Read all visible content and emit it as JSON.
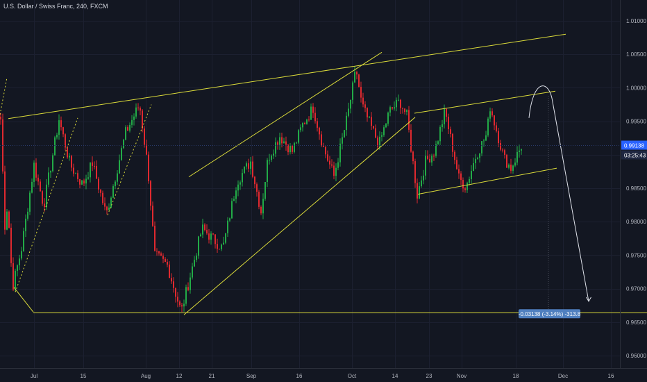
{
  "chart_data": {
    "type": "candlestick",
    "title": "U.S. Dollar / Swiss Franc, 240, FXCM",
    "price_axis": {
      "ticks": [
        "1.01000",
        "1.00500",
        "1.00000",
        "0.99500",
        "0.99000",
        "0.98500",
        "0.98000",
        "0.97500",
        "0.97000",
        "0.96500",
        "0.96000"
      ],
      "range": [
        0.9592,
        1.0118
      ]
    },
    "time_axis": {
      "labels": [
        "Jul",
        "15",
        "Aug",
        "12",
        "21",
        "Sep",
        "16",
        "Oct",
        "14",
        "23",
        "Nov",
        "18",
        "Dec",
        "16"
      ]
    },
    "current_price": "0.99138",
    "countdown": "03:25:43",
    "measurement_label": "-0.03138 (-3.14%) -313.8",
    "target_level": 0.9662,
    "colors": {
      "background": "#131722",
      "up": "#26a69a",
      "up_candle": "#22ab47",
      "down": "#e0292f",
      "trendline": "#dcdc3a",
      "axis_text": "#b2b5be",
      "price_badge": "#2962ff"
    },
    "swing_points": [
      {
        "t": 0,
        "p": 0.9953
      },
      {
        "t": 6,
        "p": 0.9795
      },
      {
        "t": 10,
        "p": 0.9828
      },
      {
        "t": 17,
        "p": 0.9702
      },
      {
        "t": 30,
        "p": 0.976
      },
      {
        "t": 48,
        "p": 0.9885
      },
      {
        "t": 62,
        "p": 0.9824
      },
      {
        "t": 84,
        "p": 0.9953
      },
      {
        "t": 100,
        "p": 0.9885
      },
      {
        "t": 118,
        "p": 0.9855
      },
      {
        "t": 132,
        "p": 0.9888
      },
      {
        "t": 152,
        "p": 0.981
      },
      {
        "t": 180,
        "p": 0.9933
      },
      {
        "t": 200,
        "p": 0.9975
      },
      {
        "t": 212,
        "p": 0.988
      },
      {
        "t": 222,
        "p": 0.975
      },
      {
        "t": 240,
        "p": 0.9735
      },
      {
        "t": 260,
        "p": 0.9665
      },
      {
        "t": 290,
        "p": 0.979
      },
      {
        "t": 320,
        "p": 0.976
      },
      {
        "t": 340,
        "p": 0.986
      },
      {
        "t": 360,
        "p": 0.989
      },
      {
        "t": 375,
        "p": 0.9815
      },
      {
        "t": 385,
        "p": 0.9895
      },
      {
        "t": 402,
        "p": 0.9928
      },
      {
        "t": 420,
        "p": 0.9905
      },
      {
        "t": 435,
        "p": 0.9945
      },
      {
        "t": 450,
        "p": 0.997
      },
      {
        "t": 465,
        "p": 0.991
      },
      {
        "t": 480,
        "p": 0.9868
      },
      {
        "t": 500,
        "p": 0.996
      },
      {
        "t": 512,
        "p": 1.0028
      },
      {
        "t": 520,
        "p": 0.9975
      },
      {
        "t": 530,
        "p": 0.995
      },
      {
        "t": 545,
        "p": 0.9915
      },
      {
        "t": 560,
        "p": 0.9965
      },
      {
        "t": 575,
        "p": 0.998
      },
      {
        "t": 585,
        "p": 0.9958
      },
      {
        "t": 600,
        "p": 0.984
      },
      {
        "t": 612,
        "p": 0.989
      },
      {
        "t": 625,
        "p": 0.9905
      },
      {
        "t": 640,
        "p": 0.9965
      },
      {
        "t": 660,
        "p": 0.9865
      },
      {
        "t": 670,
        "p": 0.9852
      },
      {
        "t": 685,
        "p": 0.99
      },
      {
        "t": 700,
        "p": 0.993
      },
      {
        "t": 705,
        "p": 0.9972
      },
      {
        "t": 725,
        "p": 0.9895
      },
      {
        "t": 735,
        "p": 0.988
      },
      {
        "t": 750,
        "p": 0.9913
      }
    ],
    "trendlines": [
      {
        "t1": 12,
        "p1": 0.9954,
        "t2": 815,
        "p2": 1.008,
        "style": "solid"
      },
      {
        "t1": 272,
        "p1": 0.9867,
        "t2": 550,
        "p2": 1.0053,
        "style": "solid"
      },
      {
        "t1": 265,
        "p1": 0.9661,
        "t2": 598,
        "p2": 0.9956,
        "style": "solid"
      },
      {
        "t1": 597,
        "p1": 0.9962,
        "t2": 800,
        "p2": 0.9995,
        "style": "solid"
      },
      {
        "t1": 602,
        "p1": 0.9841,
        "t2": 802,
        "p2": 0.988,
        "style": "solid"
      },
      {
        "t1": 20,
        "p1": 0.9702,
        "t2": 48,
        "p2": 0.9665,
        "style": "solid"
      },
      {
        "t1": 48,
        "p1": 0.9664,
        "t2": 932,
        "p2": 0.9664,
        "style": "solid"
      },
      {
        "t1": 22,
        "p1": 0.9695,
        "t2": 112,
        "p2": 0.9955,
        "style": "dotted"
      },
      {
        "t1": 0,
        "p1": 0.996,
        "t2": 10,
        "p2": 1.0015,
        "style": "dotted"
      },
      {
        "t1": 155,
        "p1": 0.981,
        "t2": 218,
        "p2": 0.9975,
        "style": "dotted"
      }
    ],
    "projection": [
      {
        "t": 762,
        "p": 0.9955
      },
      {
        "t": 785,
        "p": 0.9993
      },
      {
        "t": 848,
        "p": 0.9681
      }
    ],
    "projection_time": 790
  }
}
